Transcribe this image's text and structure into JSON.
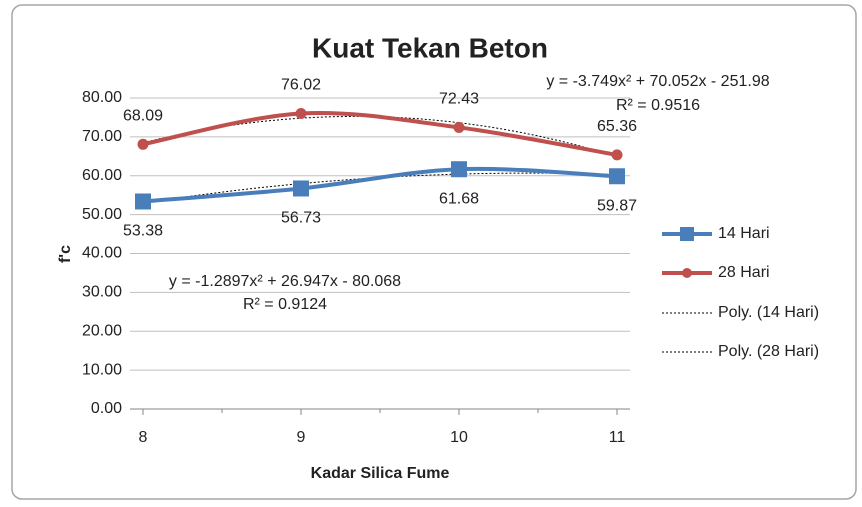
{
  "chart_data": {
    "type": "line",
    "title": "Kuat Tekan Beton",
    "x_label": "Kadar Silica Fume",
    "y_label": "f'c",
    "x": [
      8,
      9,
      10,
      11
    ],
    "xlim": [
      8,
      11
    ],
    "xticks": [
      8,
      9,
      10,
      11
    ],
    "ylim": [
      0,
      80
    ],
    "yticks": [
      {
        "value": 0,
        "label": "0.00"
      },
      {
        "value": 10,
        "label": "10.00"
      },
      {
        "value": 20,
        "label": "20.00"
      },
      {
        "value": 30,
        "label": "30.00"
      },
      {
        "value": 40,
        "label": "40.00"
      },
      {
        "value": 50,
        "label": "50.00"
      },
      {
        "value": 60,
        "label": "60.00"
      },
      {
        "value": 70,
        "label": "70.00"
      },
      {
        "value": 80,
        "label": "80.00"
      }
    ],
    "grid": true,
    "legend": "right",
    "series": [
      {
        "name": "14 Hari",
        "color": "#4a7ebb",
        "marker": "square",
        "label_side": "below",
        "values": [
          53.38,
          56.73,
          61.68,
          59.87
        ]
      },
      {
        "name": "28 Hari",
        "color": "#c0504d",
        "marker": "circle",
        "label_side": "above",
        "values": [
          68.09,
          76.02,
          72.43,
          65.36
        ]
      }
    ],
    "trendlines": [
      {
        "name": "Poly. (14 Hari)",
        "coefficients": [
          -1.2897,
          26.947,
          -80.068
        ],
        "equation": "y = -1.2897x² + 26.947x - 80.068",
        "r2": "R² = 0.9124"
      },
      {
        "name": "Poly. (28 Hari)",
        "coefficients": [
          -3.749,
          70.052,
          -251.98
        ],
        "equation": "y = -3.749x² + 70.052x - 251.98",
        "r2": "R² = 0.9516"
      }
    ]
  }
}
